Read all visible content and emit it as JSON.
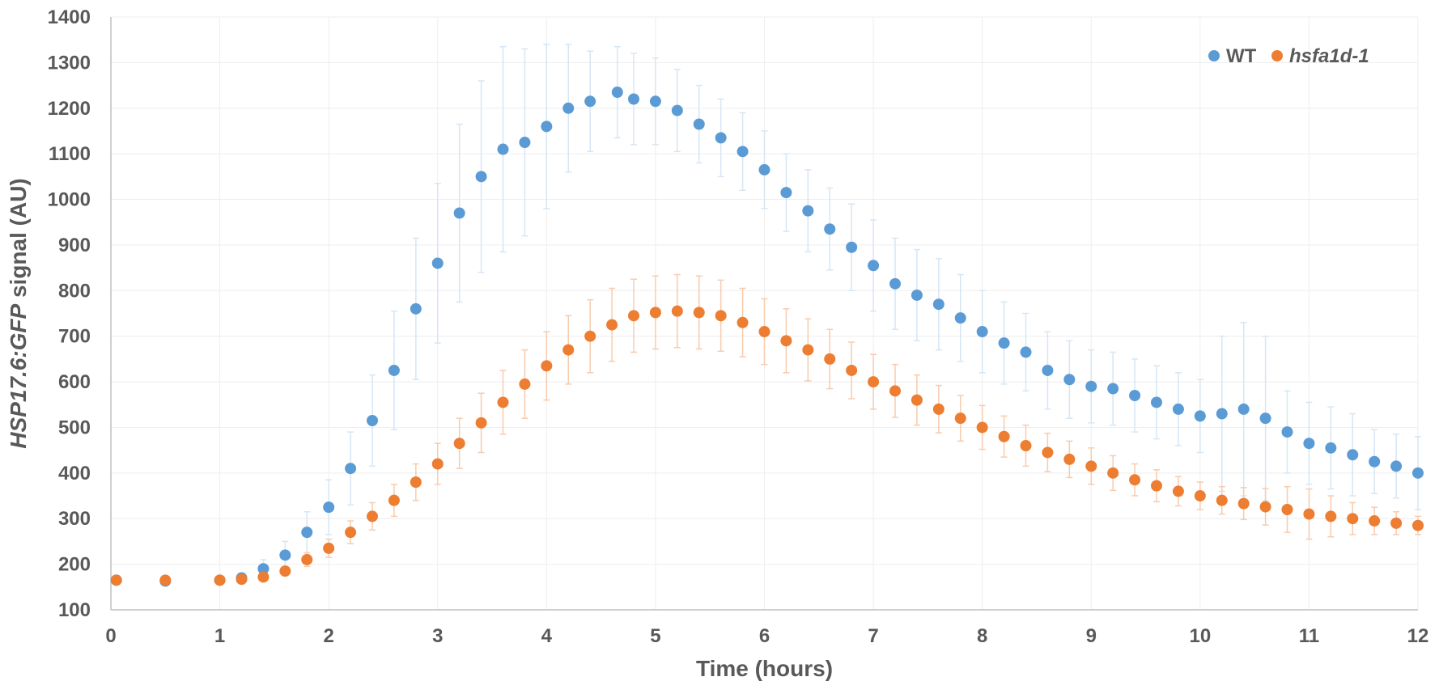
{
  "chart_data": {
    "type": "scatter",
    "title": "",
    "xlabel": "Time (hours)",
    "ylabel_parts": [
      {
        "text": "HSP17.6:GFP",
        "italic": true
      },
      {
        "text": " signal (AU)",
        "italic": false
      }
    ],
    "xlim": [
      0,
      12
    ],
    "ylim": [
      100,
      1400
    ],
    "x_ticks": [
      0,
      1,
      2,
      3,
      4,
      5,
      6,
      7,
      8,
      9,
      10,
      11,
      12
    ],
    "y_ticks": [
      100,
      200,
      300,
      400,
      500,
      600,
      700,
      800,
      900,
      1000,
      1100,
      1200,
      1300,
      1400
    ],
    "grid": true,
    "error_bars": true,
    "legend_position": "top-right",
    "series": [
      {
        "name": "WT",
        "name_italic": false,
        "color": "#5B9BD5",
        "error_color": "#D6E6F4",
        "x": [
          0.05,
          0.5,
          1.0,
          1.2,
          1.4,
          1.6,
          1.8,
          2.0,
          2.2,
          2.4,
          2.6,
          2.8,
          3.0,
          3.2,
          3.4,
          3.6,
          3.8,
          4.0,
          4.2,
          4.4,
          4.65,
          4.8,
          5.0,
          5.2,
          5.4,
          5.6,
          5.8,
          6.0,
          6.2,
          6.4,
          6.6,
          6.8,
          7.0,
          7.2,
          7.4,
          7.6,
          7.8,
          8.0,
          8.2,
          8.4,
          8.6,
          8.8,
          9.0,
          9.2,
          9.4,
          9.6,
          9.8,
          10.0,
          10.2,
          10.4,
          10.6,
          10.8,
          11.0,
          11.2,
          11.4,
          11.6,
          11.8,
          12.0
        ],
        "y": [
          165,
          163,
          165,
          170,
          190,
          220,
          270,
          325,
          410,
          515,
          625,
          760,
          860,
          970,
          1050,
          1110,
          1125,
          1160,
          1200,
          1215,
          1235,
          1220,
          1215,
          1195,
          1165,
          1135,
          1105,
          1065,
          1015,
          975,
          935,
          895,
          855,
          815,
          790,
          770,
          740,
          710,
          685,
          665,
          625,
          605,
          590,
          585,
          570,
          555,
          540,
          525,
          530,
          540,
          520,
          490,
          465,
          455,
          440,
          425,
          415,
          400
        ],
        "err": [
          5,
          5,
          5,
          10,
          20,
          30,
          45,
          60,
          80,
          100,
          130,
          155,
          175,
          195,
          210,
          225,
          205,
          180,
          140,
          110,
          100,
          100,
          95,
          90,
          85,
          85,
          85,
          85,
          85,
          90,
          90,
          95,
          100,
          100,
          100,
          100,
          95,
          90,
          90,
          85,
          85,
          85,
          80,
          80,
          80,
          80,
          80,
          80,
          170,
          190,
          180,
          90,
          90,
          90,
          90,
          70,
          70,
          80
        ]
      },
      {
        "name": "hsfa1d-1",
        "name_italic": true,
        "color": "#ED7D31",
        "error_color": "#F8CBAD",
        "x": [
          0.05,
          0.5,
          1.0,
          1.2,
          1.4,
          1.6,
          1.8,
          2.0,
          2.2,
          2.4,
          2.6,
          2.8,
          3.0,
          3.2,
          3.4,
          3.6,
          3.8,
          4.0,
          4.2,
          4.4,
          4.6,
          4.8,
          5.0,
          5.2,
          5.4,
          5.6,
          5.8,
          6.0,
          6.2,
          6.4,
          6.6,
          6.8,
          7.0,
          7.2,
          7.4,
          7.6,
          7.8,
          8.0,
          8.2,
          8.4,
          8.6,
          8.8,
          9.0,
          9.2,
          9.4,
          9.6,
          9.8,
          10.0,
          10.2,
          10.4,
          10.6,
          10.8,
          11.0,
          11.2,
          11.4,
          11.6,
          11.8,
          12.0
        ],
        "y": [
          165,
          165,
          165,
          167,
          172,
          185,
          210,
          235,
          270,
          305,
          340,
          380,
          420,
          465,
          510,
          555,
          595,
          635,
          670,
          700,
          725,
          745,
          752,
          755,
          752,
          745,
          730,
          710,
          690,
          670,
          650,
          625,
          600,
          580,
          560,
          540,
          520,
          500,
          480,
          460,
          445,
          430,
          415,
          400,
          385,
          372,
          360,
          350,
          340,
          333,
          326,
          320,
          310,
          305,
          300,
          295,
          290,
          285
        ],
        "err": [
          3,
          3,
          3,
          5,
          8,
          10,
          15,
          20,
          25,
          30,
          35,
          40,
          45,
          55,
          65,
          70,
          75,
          75,
          75,
          80,
          80,
          80,
          80,
          80,
          80,
          78,
          75,
          72,
          70,
          68,
          65,
          62,
          60,
          58,
          55,
          52,
          50,
          48,
          45,
          45,
          42,
          40,
          40,
          38,
          35,
          35,
          32,
          30,
          30,
          35,
          40,
          50,
          55,
          45,
          35,
          30,
          25,
          20
        ]
      }
    ]
  }
}
